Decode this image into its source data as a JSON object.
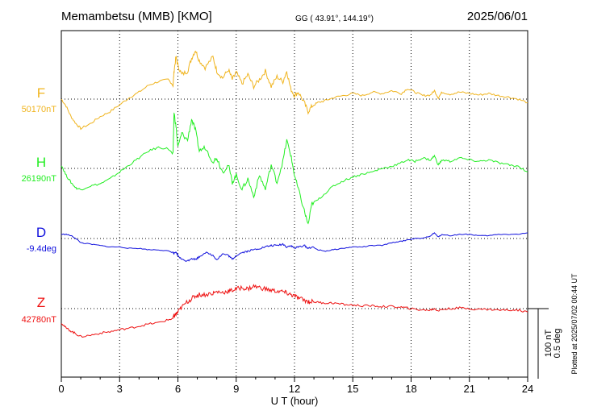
{
  "header": {
    "station": "Memambetsu (MMB)  [KMO]",
    "coords": "GG ( 43.91°, 144.19°)",
    "date": "2025/06/01"
  },
  "side_note": "Plotted at 2025/07/02 00:44 UT",
  "scale_bar": {
    "nt": "100 nT",
    "deg": "0.5 deg"
  },
  "chart_data": {
    "type": "line",
    "title": "Memambetsu (MMB)  [KMO]",
    "xlabel": "U T (hour)",
    "ylabel": "",
    "xlim": [
      0,
      24
    ],
    "xticks": [
      "0",
      "3",
      "6",
      "9",
      "12",
      "15",
      "18",
      "21",
      "24"
    ],
    "grid": true,
    "units_per_scale_bar": {
      "nT": 100,
      "deg": 0.5
    },
    "series": [
      {
        "name": "F",
        "baseline_label": "50170nT",
        "baseline": 50170,
        "unit": "nT",
        "color": "#f0b41e",
        "x": [
          0,
          0.25,
          0.5,
          0.75,
          1.0,
          1.5,
          2.0,
          2.5,
          3.0,
          3.5,
          4.0,
          4.5,
          5.0,
          5.5,
          5.75,
          5.8,
          5.9,
          6.0,
          6.2,
          6.5,
          6.7,
          6.9,
          7.1,
          7.4,
          7.8,
          8.0,
          8.3,
          8.6,
          8.8,
          9.0,
          9.3,
          9.6,
          9.9,
          10.2,
          10.5,
          10.8,
          11.1,
          11.4,
          11.6,
          11.8,
          12.0,
          12.2,
          12.5,
          12.7,
          12.9,
          13.2,
          13.6,
          14.0,
          14.5,
          15.0,
          15.5,
          16.0,
          16.5,
          17.0,
          17.5,
          17.8,
          18.2,
          18.6,
          19.0,
          19.2,
          19.4,
          19.6,
          20.0,
          20.5,
          21.0,
          21.5,
          22.0,
          22.5,
          23.0,
          23.5,
          24.0
        ],
        "values": [
          0,
          -10,
          -25,
          -35,
          -42,
          -35,
          -25,
          -18,
          -8,
          2,
          10,
          20,
          25,
          28,
          20,
          40,
          60,
          48,
          35,
          40,
          58,
          70,
          55,
          45,
          60,
          40,
          30,
          42,
          28,
          38,
          22,
          35,
          18,
          28,
          40,
          18,
          32,
          25,
          40,
          15,
          5,
          10,
          -5,
          -18,
          -10,
          -5,
          -2,
          2,
          5,
          8,
          5,
          10,
          8,
          12,
          8,
          15,
          10,
          5,
          6,
          12,
          2,
          10,
          7,
          10,
          8,
          6,
          8,
          5,
          3,
          0,
          -5
        ]
      },
      {
        "name": "H",
        "baseline_label": "26190nT",
        "baseline": 26190,
        "unit": "nT",
        "color": "#22ee22",
        "x": [
          0,
          0.25,
          0.5,
          0.75,
          1.0,
          1.5,
          2.0,
          2.5,
          3.0,
          3.5,
          4.0,
          4.5,
          5.0,
          5.5,
          5.75,
          5.8,
          5.9,
          6.0,
          6.2,
          6.5,
          6.7,
          6.9,
          7.1,
          7.4,
          7.8,
          8.0,
          8.3,
          8.6,
          8.8,
          9.0,
          9.3,
          9.6,
          9.9,
          10.2,
          10.5,
          10.8,
          11.1,
          11.4,
          11.6,
          11.8,
          12.0,
          12.2,
          12.5,
          12.7,
          12.9,
          13.2,
          13.6,
          14.0,
          14.5,
          15.0,
          15.5,
          16.0,
          16.5,
          17.0,
          17.5,
          17.8,
          18.2,
          18.6,
          19.0,
          19.2,
          19.4,
          19.6,
          20.0,
          20.5,
          21.0,
          21.5,
          22.0,
          22.5,
          23.0,
          23.5,
          24.0
        ],
        "values": [
          5,
          -10,
          -20,
          -28,
          -30,
          -25,
          -22,
          -15,
          -5,
          5,
          15,
          25,
          30,
          28,
          20,
          80,
          60,
          30,
          50,
          40,
          70,
          55,
          25,
          30,
          10,
          15,
          -5,
          5,
          -20,
          -10,
          -30,
          -15,
          -40,
          -10,
          -30,
          5,
          -20,
          10,
          40,
          20,
          -10,
          -30,
          -60,
          -80,
          -50,
          -45,
          -35,
          -25,
          -18,
          -12,
          -8,
          -5,
          0,
          3,
          8,
          12,
          10,
          15,
          12,
          18,
          5,
          12,
          10,
          15,
          12,
          10,
          12,
          8,
          5,
          3,
          -5
        ]
      },
      {
        "name": "D",
        "baseline_label": "-9.4deg",
        "baseline": -9.4,
        "unit": "deg",
        "color": "#1010dd",
        "x": [
          0,
          0.25,
          0.5,
          0.75,
          1.0,
          1.5,
          2.0,
          2.5,
          3.0,
          3.5,
          4.0,
          4.5,
          5.0,
          5.5,
          5.75,
          5.8,
          5.9,
          6.0,
          6.2,
          6.5,
          6.7,
          6.9,
          7.1,
          7.4,
          7.8,
          8.0,
          8.3,
          8.6,
          8.8,
          9.0,
          9.3,
          9.6,
          9.9,
          10.2,
          10.5,
          10.8,
          11.1,
          11.4,
          11.6,
          11.8,
          12.0,
          12.2,
          12.5,
          12.7,
          12.9,
          13.2,
          13.6,
          14.0,
          14.5,
          15.0,
          15.5,
          16.0,
          16.5,
          17.0,
          17.5,
          17.8,
          18.2,
          18.6,
          19.0,
          19.2,
          19.4,
          19.6,
          20.0,
          20.5,
          21.0,
          21.5,
          22.0,
          22.5,
          23.0,
          23.5,
          24.0
        ],
        "values": [
          0.03,
          0.03,
          0.02,
          0.0,
          -0.03,
          -0.04,
          -0.05,
          -0.06,
          -0.06,
          -0.07,
          -0.07,
          -0.08,
          -0.08,
          -0.09,
          -0.1,
          -0.11,
          -0.1,
          -0.12,
          -0.15,
          -0.16,
          -0.14,
          -0.15,
          -0.13,
          -0.1,
          -0.12,
          -0.15,
          -0.11,
          -0.12,
          -0.15,
          -0.12,
          -0.1,
          -0.09,
          -0.08,
          -0.07,
          -0.06,
          -0.05,
          -0.05,
          -0.04,
          -0.06,
          -0.05,
          -0.07,
          -0.06,
          -0.05,
          -0.07,
          -0.06,
          -0.08,
          -0.09,
          -0.08,
          -0.07,
          -0.06,
          -0.06,
          -0.05,
          -0.05,
          -0.03,
          -0.02,
          -0.01,
          0.0,
          0.0,
          0.02,
          0.04,
          0.01,
          0.03,
          0.02,
          0.03,
          0.03,
          0.02,
          0.02,
          0.03,
          0.03,
          0.03,
          0.04
        ]
      },
      {
        "name": "Z",
        "baseline_label": "42780nT",
        "baseline": 42780,
        "unit": "nT",
        "color": "#ee1111",
        "x": [
          0,
          0.25,
          0.5,
          0.75,
          1.0,
          1.5,
          2.0,
          2.5,
          3.0,
          3.5,
          4.0,
          4.5,
          5.0,
          5.5,
          5.75,
          5.8,
          5.9,
          6.0,
          6.2,
          6.5,
          6.7,
          6.9,
          7.1,
          7.4,
          7.8,
          8.0,
          8.3,
          8.6,
          8.8,
          9.0,
          9.3,
          9.6,
          9.9,
          10.2,
          10.5,
          10.8,
          11.1,
          11.4,
          11.6,
          11.8,
          12.0,
          12.2,
          12.5,
          12.7,
          12.9,
          13.2,
          13.6,
          14.0,
          14.5,
          15.0,
          15.5,
          16.0,
          16.5,
          17.0,
          17.5,
          17.8,
          18.2,
          18.6,
          19.0,
          19.2,
          19.4,
          19.6,
          20.0,
          20.5,
          21.0,
          21.5,
          22.0,
          22.5,
          23.0,
          23.5,
          24.0
        ],
        "values": [
          -20,
          -28,
          -32,
          -36,
          -40,
          -38,
          -35,
          -33,
          -30,
          -28,
          -25,
          -22,
          -20,
          -16,
          -14,
          -10,
          -8,
          -5,
          2,
          10,
          14,
          18,
          20,
          20,
          22,
          24,
          23,
          25,
          26,
          28,
          30,
          28,
          32,
          30,
          28,
          26,
          25,
          24,
          22,
          20,
          18,
          15,
          12,
          10,
          10,
          9,
          8,
          8,
          6,
          5,
          4,
          4,
          3,
          3,
          2,
          1,
          -1,
          -2,
          -2,
          0,
          -3,
          -1,
          0,
          1,
          0,
          -1,
          -1,
          -2,
          -2,
          -2,
          -5
        ]
      }
    ]
  }
}
